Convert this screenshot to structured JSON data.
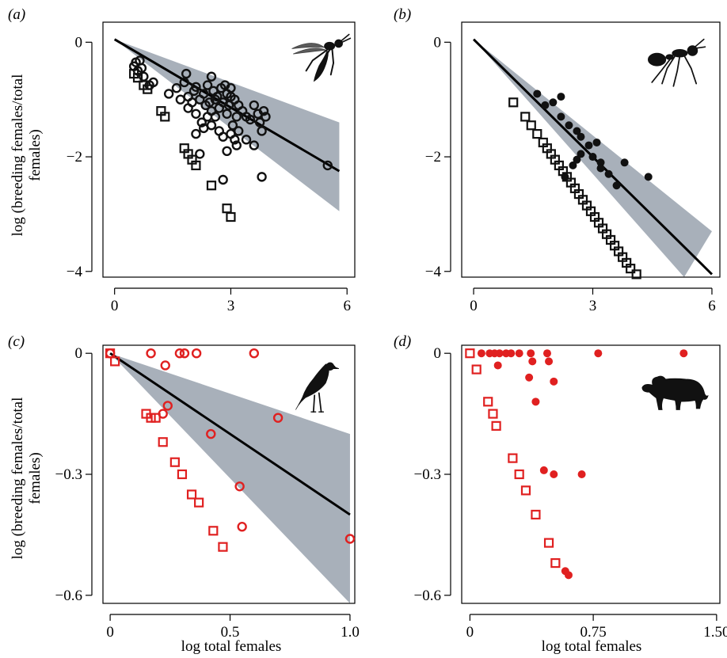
{
  "figure": {
    "shared_xlabel": "log total females",
    "shared_ylabel_line1": "log (breeding females/total",
    "shared_ylabel_line2": "females)"
  },
  "chart_data": [
    {
      "panel": "(a)",
      "type": "scatter",
      "xlim": [
        -0.3,
        6.2
      ],
      "ylim": [
        -4.1,
        0.35
      ],
      "xticks": [
        0,
        3,
        6
      ],
      "xtick_labels": [
        "0",
        "3",
        "6"
      ],
      "yticks": [
        0,
        -2,
        -4
      ],
      "ytick_labels": [
        "0",
        "−2",
        "−4"
      ],
      "xlabel": "",
      "ylabel": "",
      "color": "#111111",
      "band_color": "#a8b0ba",
      "line_color": "#000000",
      "fit_line": {
        "x": [
          0,
          5.8
        ],
        "y": [
          0.05,
          -2.25
        ]
      },
      "band": {
        "upper": [
          [
            0,
            0.05
          ],
          [
            5.8,
            -1.4
          ]
        ],
        "lower": [
          [
            0,
            0.05
          ],
          [
            5.8,
            -2.95
          ]
        ]
      },
      "icon": "wasp-icon",
      "series": [
        {
          "marker": "circle",
          "points": [
            [
              0.5,
              -0.42
            ],
            [
              0.55,
              -0.35
            ],
            [
              0.6,
              -0.5
            ],
            [
              0.65,
              -0.32
            ],
            [
              0.7,
              -0.45
            ],
            [
              0.75,
              -0.6
            ],
            [
              1.0,
              -0.7
            ],
            [
              0.9,
              -0.75
            ],
            [
              1.4,
              -0.9
            ],
            [
              1.6,
              -0.8
            ],
            [
              1.7,
              -1.0
            ],
            [
              1.8,
              -0.7
            ],
            [
              1.85,
              -0.55
            ],
            [
              1.9,
              -0.95
            ],
            [
              1.9,
              -1.15
            ],
            [
              2.0,
              -1.05
            ],
            [
              2.05,
              -0.85
            ],
            [
              2.1,
              -1.25
            ],
            [
              2.1,
              -0.78
            ],
            [
              2.2,
              -1.0
            ],
            [
              2.25,
              -1.4
            ],
            [
              2.3,
              -0.9
            ],
            [
              2.35,
              -1.1
            ],
            [
              2.4,
              -1.3
            ],
            [
              2.4,
              -0.75
            ],
            [
              2.45,
              -1.05
            ],
            [
              2.5,
              -1.2
            ],
            [
              2.5,
              -0.6
            ],
            [
              2.55,
              -0.85
            ],
            [
              2.6,
              -1.0
            ],
            [
              2.6,
              -1.3
            ],
            [
              2.65,
              -0.95
            ],
            [
              2.7,
              -1.15
            ],
            [
              2.75,
              -0.8
            ],
            [
              2.8,
              -1.05
            ],
            [
              2.85,
              -0.75
            ],
            [
              2.9,
              -1.25
            ],
            [
              2.9,
              -0.9
            ],
            [
              2.95,
              -1.1
            ],
            [
              3.0,
              -0.95
            ],
            [
              3.0,
              -0.8
            ],
            [
              3.05,
              -1.45
            ],
            [
              3.1,
              -1.0
            ],
            [
              3.15,
              -1.3
            ],
            [
              3.2,
              -1.1
            ],
            [
              3.3,
              -1.2
            ],
            [
              3.4,
              -1.3
            ],
            [
              3.5,
              -1.35
            ],
            [
              3.6,
              -1.1
            ],
            [
              3.7,
              -1.25
            ],
            [
              3.75,
              -1.4
            ],
            [
              3.8,
              -1.55
            ],
            [
              3.85,
              -1.2
            ],
            [
              3.9,
              -1.3
            ],
            [
              2.1,
              -1.6
            ],
            [
              2.3,
              -1.5
            ],
            [
              2.5,
              -1.45
            ],
            [
              2.7,
              -1.55
            ],
            [
              2.8,
              -1.65
            ],
            [
              3.0,
              -1.6
            ],
            [
              3.1,
              -1.7
            ],
            [
              3.2,
              -1.55
            ],
            [
              3.4,
              -1.7
            ],
            [
              3.6,
              -1.8
            ],
            [
              2.2,
              -1.95
            ],
            [
              2.9,
              -1.9
            ],
            [
              3.15,
              -1.8
            ],
            [
              2.8,
              -2.4
            ],
            [
              3.8,
              -2.35
            ],
            [
              5.5,
              -2.15
            ]
          ]
        },
        {
          "marker": "square",
          "points": [
            [
              0.5,
              -0.55
            ],
            [
              0.6,
              -0.62
            ],
            [
              0.75,
              -0.75
            ],
            [
              0.85,
              -0.82
            ],
            [
              1.2,
              -1.2
            ],
            [
              1.3,
              -1.3
            ],
            [
              1.8,
              -1.85
            ],
            [
              1.9,
              -1.95
            ],
            [
              2.0,
              -2.05
            ],
            [
              2.1,
              -2.15
            ],
            [
              2.5,
              -2.5
            ],
            [
              2.9,
              -2.9
            ],
            [
              3.0,
              -3.05
            ]
          ]
        }
      ]
    },
    {
      "panel": "(b)",
      "type": "scatter",
      "xlim": [
        -0.3,
        6.2
      ],
      "ylim": [
        -4.1,
        0.35
      ],
      "xticks": [
        0,
        3,
        6
      ],
      "xtick_labels": [
        "0",
        "3",
        "6"
      ],
      "yticks": [
        0,
        -2,
        -4
      ],
      "ytick_labels": [
        "0",
        "−2",
        "−4"
      ],
      "xlabel": "",
      "ylabel": "",
      "color": "#111111",
      "band_color": "#a8b0ba",
      "line_color": "#000000",
      "fit_line": {
        "x": [
          0,
          6
        ],
        "y": [
          0.05,
          -4.05
        ]
      },
      "band": {
        "upper": [
          [
            0,
            0.05
          ],
          [
            6,
            -3.3
          ]
        ],
        "lower": [
          [
            0,
            0.05
          ],
          [
            5.3,
            -4.1
          ]
        ]
      },
      "icon": "ant-icon",
      "series": [
        {
          "marker": "dot",
          "points": [
            [
              1.6,
              -0.9
            ],
            [
              1.8,
              -1.1
            ],
            [
              2.0,
              -1.05
            ],
            [
              2.2,
              -1.3
            ],
            [
              2.4,
              -1.45
            ],
            [
              2.6,
              -1.55
            ],
            [
              2.7,
              -1.65
            ],
            [
              2.9,
              -1.8
            ],
            [
              3.1,
              -1.75
            ],
            [
              3.0,
              -2.0
            ],
            [
              3.2,
              -2.1
            ],
            [
              3.8,
              -2.1
            ],
            [
              3.4,
              -2.3
            ],
            [
              3.6,
              -2.5
            ],
            [
              4.4,
              -2.35
            ],
            [
              2.3,
              -2.35
            ],
            [
              2.5,
              -2.15
            ],
            [
              2.6,
              -2.05
            ],
            [
              2.7,
              -1.95
            ],
            [
              3.2,
              -2.2
            ],
            [
              2.2,
              -0.95
            ]
          ]
        },
        {
          "marker": "square",
          "points": [
            [
              1.0,
              -1.05
            ],
            [
              1.3,
              -1.3
            ],
            [
              1.45,
              -1.45
            ],
            [
              1.6,
              -1.6
            ],
            [
              1.75,
              -1.75
            ],
            [
              1.85,
              -1.85
            ],
            [
              1.95,
              -1.95
            ],
            [
              2.05,
              -2.05
            ],
            [
              2.15,
              -2.15
            ],
            [
              2.25,
              -2.25
            ],
            [
              2.35,
              -2.35
            ],
            [
              2.45,
              -2.45
            ],
            [
              2.55,
              -2.55
            ],
            [
              2.65,
              -2.65
            ],
            [
              2.75,
              -2.75
            ],
            [
              2.85,
              -2.85
            ],
            [
              2.95,
              -2.95
            ],
            [
              3.05,
              -3.05
            ],
            [
              3.15,
              -3.15
            ],
            [
              3.25,
              -3.25
            ],
            [
              3.35,
              -3.35
            ],
            [
              3.45,
              -3.45
            ],
            [
              3.55,
              -3.55
            ],
            [
              3.65,
              -3.65
            ],
            [
              3.75,
              -3.75
            ],
            [
              3.85,
              -3.85
            ],
            [
              3.95,
              -3.95
            ],
            [
              4.1,
              -4.05
            ]
          ]
        }
      ]
    },
    {
      "panel": "(c)",
      "type": "scatter",
      "xlim": [
        -0.03,
        1.02
      ],
      "ylim": [
        -0.62,
        0.02
      ],
      "xticks": [
        0,
        0.5,
        1.0
      ],
      "xtick_labels": [
        "0",
        "0.5",
        "1.0"
      ],
      "yticks": [
        0,
        -0.3,
        -0.6
      ],
      "ytick_labels": [
        "0",
        "−0.3",
        "−0.6"
      ],
      "xlabel": "",
      "ylabel": "",
      "color": "#e02020",
      "band_color": "#a8b0ba",
      "line_color": "#000000",
      "fit_line": {
        "x": [
          0,
          1.0
        ],
        "y": [
          0.0,
          -0.4
        ]
      },
      "band": {
        "upper": [
          [
            0,
            0.0
          ],
          [
            1.0,
            -0.2
          ]
        ],
        "lower": [
          [
            0,
            0.0
          ],
          [
            1.0,
            -0.62
          ]
        ]
      },
      "icon": "bird-icon",
      "series": [
        {
          "marker": "circle",
          "points": [
            [
              0.0,
              0.0
            ],
            [
              0.17,
              0.0
            ],
            [
              0.23,
              -0.03
            ],
            [
              0.29,
              0.0
            ],
            [
              0.31,
              0.0
            ],
            [
              0.36,
              0.0
            ],
            [
              0.6,
              0.0
            ],
            [
              0.22,
              -0.15
            ],
            [
              0.24,
              -0.13
            ],
            [
              0.42,
              -0.2
            ],
            [
              0.7,
              -0.16
            ],
            [
              0.54,
              -0.33
            ],
            [
              0.55,
              -0.43
            ],
            [
              1.0,
              -0.46
            ]
          ]
        },
        {
          "marker": "square",
          "points": [
            [
              0.0,
              0.0
            ],
            [
              0.02,
              -0.02
            ],
            [
              0.15,
              -0.15
            ],
            [
              0.17,
              -0.16
            ],
            [
              0.19,
              -0.16
            ],
            [
              0.22,
              -0.22
            ],
            [
              0.27,
              -0.27
            ],
            [
              0.3,
              -0.3
            ],
            [
              0.34,
              -0.35
            ],
            [
              0.37,
              -0.37
            ],
            [
              0.43,
              -0.44
            ],
            [
              0.47,
              -0.48
            ]
          ]
        }
      ]
    },
    {
      "panel": "(d)",
      "type": "scatter",
      "xlim": [
        -0.05,
        1.52
      ],
      "ylim": [
        -0.62,
        0.02
      ],
      "xticks": [
        0,
        0.75,
        1.5
      ],
      "xtick_labels": [
        "0",
        "0.75",
        "1.50"
      ],
      "yticks": [
        0,
        -0.3,
        -0.6
      ],
      "ytick_labels": [
        "0",
        "−0.3",
        "−0.6"
      ],
      "xlabel": "",
      "ylabel": "",
      "color": "#e02020",
      "icon": "lion-icon",
      "series": [
        {
          "marker": "dot",
          "points": [
            [
              0.07,
              0.0
            ],
            [
              0.12,
              0.0
            ],
            [
              0.15,
              0.0
            ],
            [
              0.18,
              0.0
            ],
            [
              0.22,
              0.0
            ],
            [
              0.25,
              0.0
            ],
            [
              0.3,
              0.0
            ],
            [
              0.37,
              0.0
            ],
            [
              0.47,
              0.0
            ],
            [
              0.78,
              0.0
            ],
            [
              1.3,
              0.0
            ],
            [
              0.17,
              -0.03
            ],
            [
              0.38,
              -0.02
            ],
            [
              0.48,
              -0.02
            ],
            [
              0.36,
              -0.06
            ],
            [
              0.51,
              -0.07
            ],
            [
              0.4,
              -0.12
            ],
            [
              0.45,
              -0.29
            ],
            [
              0.51,
              -0.3
            ],
            [
              0.68,
              -0.3
            ],
            [
              0.58,
              -0.54
            ],
            [
              0.6,
              -0.55
            ]
          ]
        },
        {
          "marker": "square",
          "points": [
            [
              0.0,
              0.0
            ],
            [
              0.04,
              -0.04
            ],
            [
              0.11,
              -0.12
            ],
            [
              0.14,
              -0.15
            ],
            [
              0.16,
              -0.18
            ],
            [
              0.26,
              -0.26
            ],
            [
              0.3,
              -0.3
            ],
            [
              0.34,
              -0.34
            ],
            [
              0.4,
              -0.4
            ],
            [
              0.48,
              -0.47
            ],
            [
              0.52,
              -0.52
            ]
          ]
        }
      ]
    }
  ]
}
